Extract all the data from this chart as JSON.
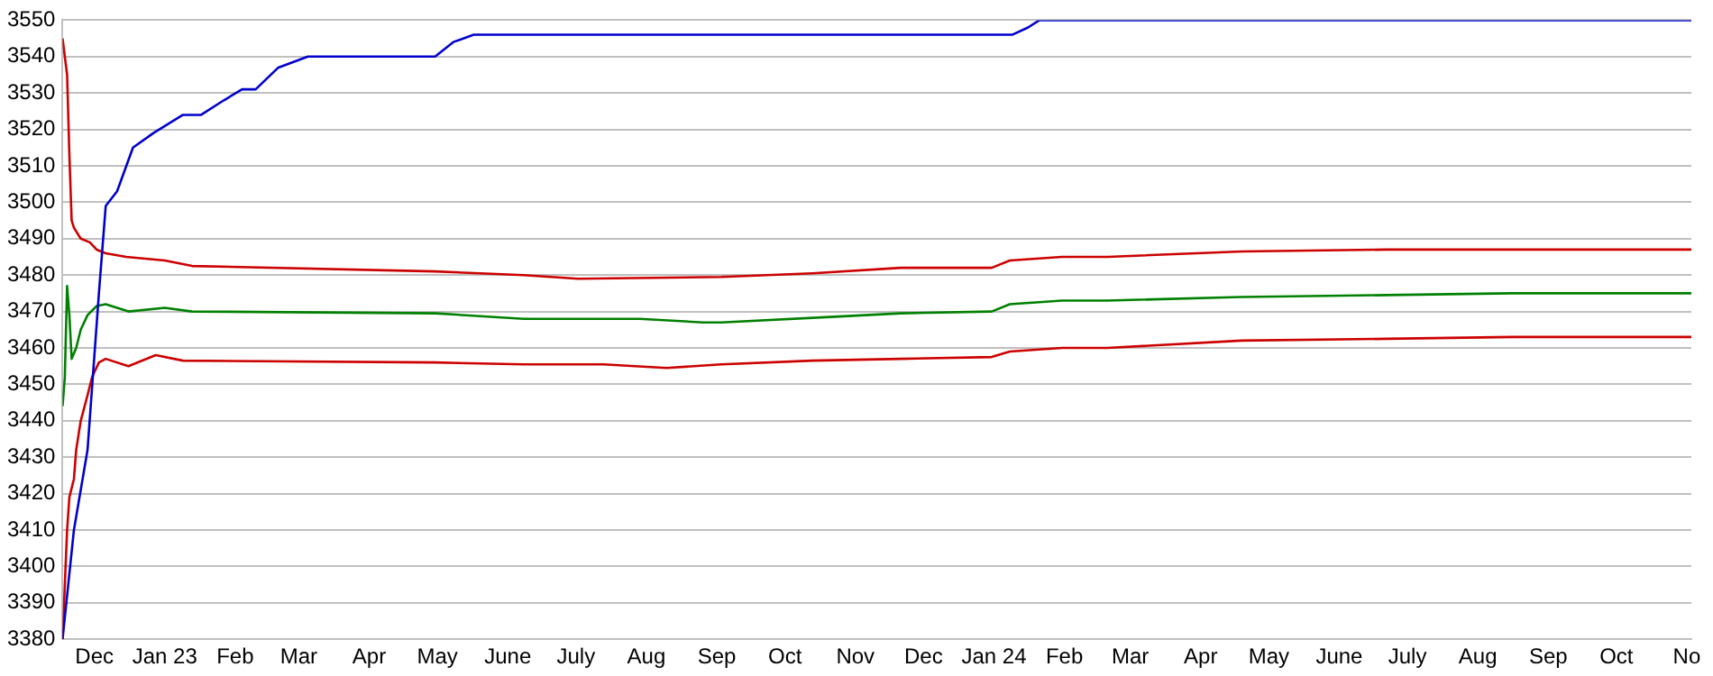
{
  "chart_data": {
    "type": "line",
    "xlim": [
      "2022-12-01",
      "2024-11-17"
    ],
    "ylim": [
      3380,
      3550
    ],
    "xticks": [
      {
        "value": "2022-12-15",
        "label": "Dec"
      },
      {
        "value": "2023-01-15",
        "label": "Jan 23"
      },
      {
        "value": "2023-02-15",
        "label": "Feb"
      },
      {
        "value": "2023-03-15",
        "label": "Mar"
      },
      {
        "value": "2023-04-15",
        "label": "Apr"
      },
      {
        "value": "2023-05-15",
        "label": "May"
      },
      {
        "value": "2023-06-15",
        "label": "June"
      },
      {
        "value": "2023-07-15",
        "label": "July"
      },
      {
        "value": "2023-08-15",
        "label": "Aug"
      },
      {
        "value": "2023-09-15",
        "label": "Sep"
      },
      {
        "value": "2023-10-15",
        "label": "Oct"
      },
      {
        "value": "2023-11-15",
        "label": "Nov"
      },
      {
        "value": "2023-12-15",
        "label": "Dec"
      },
      {
        "value": "2024-01-15",
        "label": "Jan 24"
      },
      {
        "value": "2024-02-15",
        "label": "Feb"
      },
      {
        "value": "2024-03-15",
        "label": "Mar"
      },
      {
        "value": "2024-04-15",
        "label": "Apr"
      },
      {
        "value": "2024-05-15",
        "label": "May"
      },
      {
        "value": "2024-06-15",
        "label": "June"
      },
      {
        "value": "2024-07-15",
        "label": "July"
      },
      {
        "value": "2024-08-15",
        "label": "Aug"
      },
      {
        "value": "2024-09-15",
        "label": "Sep"
      },
      {
        "value": "2024-10-15",
        "label": "Oct"
      },
      {
        "value": "2024-11-15",
        "label": "No"
      }
    ],
    "yticks": [
      3380,
      3390,
      3400,
      3410,
      3420,
      3430,
      3440,
      3450,
      3460,
      3470,
      3480,
      3490,
      3500,
      3510,
      3520,
      3530,
      3540,
      3550
    ],
    "grid": "y",
    "legend": false,
    "marker": "none",
    "line_style": "solid",
    "series": [
      {
        "color": "#0000cc",
        "x": [
          "2022-12-01",
          "2022-12-06",
          "2022-12-12",
          "2022-12-17",
          "2022-12-20",
          "2022-12-25",
          "2023-01-01",
          "2023-01-10",
          "2023-01-23",
          "2023-01-31",
          "2023-02-10",
          "2023-02-18",
          "2023-02-24",
          "2023-03-06",
          "2023-03-19",
          "2023-05-14",
          "2023-05-22",
          "2023-05-31",
          "2024-01-23",
          "2024-01-30",
          "2024-02-04",
          "2024-11-17"
        ],
        "values": [
          3380,
          3410,
          3432,
          3475,
          3499,
          3503,
          3515,
          3519,
          3524,
          3524,
          3528,
          3531,
          3531,
          3537,
          3540,
          3540,
          3544,
          3546,
          3546,
          3548,
          3550,
          3550
        ]
      },
      {
        "color": "#cc0000",
        "x": [
          "2022-12-01",
          "2022-12-03",
          "2022-12-04",
          "2022-12-05",
          "2022-12-06",
          "2022-12-09",
          "2022-12-13",
          "2022-12-16",
          "2022-12-20",
          "2022-12-29",
          "2023-01-15",
          "2023-01-27",
          "2023-05-14",
          "2023-06-22",
          "2023-07-16",
          "2023-09-17",
          "2023-10-27",
          "2023-12-05",
          "2024-01-14",
          "2024-01-22",
          "2024-02-14",
          "2024-03-05",
          "2024-05-03",
          "2024-07-06",
          "2024-08-30",
          "2024-11-17"
        ],
        "values": [
          3545,
          3535,
          3513,
          3495,
          3493,
          3490,
          3489,
          3487,
          3486,
          3485,
          3484,
          3482.5,
          3481,
          3480,
          3479,
          3479.5,
          3480.5,
          3482,
          3482,
          3484,
          3485,
          3485,
          3486.5,
          3487,
          3487,
          3487
        ]
      },
      {
        "color": "#008000",
        "x": [
          "2022-12-01",
          "2022-12-02",
          "2022-12-03",
          "2022-12-04",
          "2022-12-05",
          "2022-12-07",
          "2022-12-09",
          "2022-12-12",
          "2022-12-16",
          "2022-12-20",
          "2022-12-30",
          "2023-01-15",
          "2023-01-27",
          "2023-05-14",
          "2023-06-22",
          "2023-08-12",
          "2023-09-09",
          "2023-09-17",
          "2023-11-04",
          "2023-12-05",
          "2024-01-14",
          "2024-01-22",
          "2024-02-14",
          "2024-03-05",
          "2024-05-03",
          "2024-07-06",
          "2024-08-30",
          "2024-11-17"
        ],
        "values": [
          3444,
          3452,
          3477,
          3469,
          3457,
          3460,
          3465,
          3469,
          3471.5,
          3472,
          3470,
          3471,
          3470,
          3469.5,
          3468,
          3468,
          3467,
          3467,
          3468.5,
          3469.5,
          3470,
          3472,
          3473,
          3473,
          3474,
          3474.5,
          3475,
          3475
        ]
      },
      {
        "color": "#cc0000",
        "x": [
          "2022-12-01",
          "2022-12-03",
          "2022-12-04",
          "2022-12-06",
          "2022-12-07",
          "2022-12-09",
          "2022-12-12",
          "2022-12-14",
          "2022-12-17",
          "2022-12-20",
          "2022-12-30",
          "2023-01-11",
          "2023-01-23",
          "2023-05-14",
          "2023-06-22",
          "2023-07-27",
          "2023-08-24",
          "2023-09-17",
          "2023-10-27",
          "2023-12-05",
          "2024-01-14",
          "2024-01-22",
          "2024-02-14",
          "2024-03-05",
          "2024-05-03",
          "2024-07-06",
          "2024-08-30",
          "2024-11-17"
        ],
        "values": [
          3380,
          3410,
          3419,
          3424,
          3432,
          3440,
          3447,
          3452,
          3456,
          3457,
          3455,
          3458,
          3456.5,
          3456,
          3455.5,
          3455.5,
          3454.5,
          3455.5,
          3456.5,
          3457,
          3457.5,
          3459,
          3460,
          3460,
          3462,
          3462.5,
          3463,
          3463
        ]
      }
    ]
  }
}
